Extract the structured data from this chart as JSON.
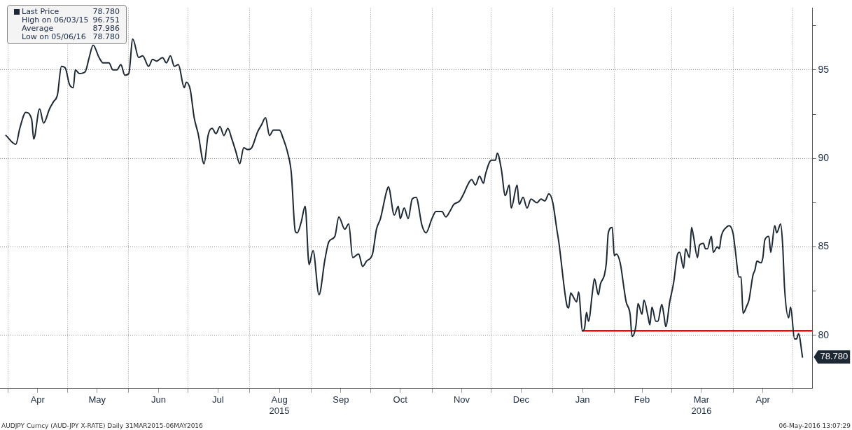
{
  "chart_data": {
    "type": "line",
    "legend": "top left",
    "grid": true,
    "marker": "none",
    "line_style": "solid",
    "xlim": [
      "2015-03-28",
      "2016-05-11"
    ],
    "xticks": [
      {
        "value": "2015-04-01",
        "label": null
      },
      {
        "value": "2015-04-16",
        "label": "Apr"
      },
      {
        "value": "2015-05-01",
        "label": null
      },
      {
        "value": "2015-05-16",
        "label": "May"
      },
      {
        "value": "2015-06-01",
        "label": null
      },
      {
        "value": "2015-06-16",
        "label": "Jun"
      },
      {
        "value": "2015-07-01",
        "label": null
      },
      {
        "value": "2015-07-16",
        "label": "Jul"
      },
      {
        "value": "2015-08-01",
        "label": null
      },
      {
        "value": "2015-08-16",
        "label": "Aug\n2015"
      },
      {
        "value": "2015-09-01",
        "label": null
      },
      {
        "value": "2015-09-16",
        "label": "Sep"
      },
      {
        "value": "2015-10-01",
        "label": null
      },
      {
        "value": "2015-10-16",
        "label": "Oct"
      },
      {
        "value": "2015-11-01",
        "label": null
      },
      {
        "value": "2015-11-16",
        "label": "Nov"
      },
      {
        "value": "2015-12-01",
        "label": null
      },
      {
        "value": "2015-12-16",
        "label": "Dec"
      },
      {
        "value": "2016-01-01",
        "label": null
      },
      {
        "value": "2016-01-16",
        "label": "Jan"
      },
      {
        "value": "2016-02-01",
        "label": null
      },
      {
        "value": "2016-02-15",
        "label": "Feb"
      },
      {
        "value": "2016-03-01",
        "label": null
      },
      {
        "value": "2016-03-16",
        "label": "Mar\n2016"
      },
      {
        "value": "2016-04-01",
        "label": null
      },
      {
        "value": "2016-04-16",
        "label": "Apr"
      },
      {
        "value": "2016-05-01",
        "label": null
      }
    ],
    "ylim": [
      77,
      98.5
    ],
    "yticks": [
      80,
      {
        "value": 82.5,
        "label": null
      },
      85,
      {
        "value": 87.5,
        "label": null
      },
      90,
      {
        "value": 92.5,
        "label": null
      },
      95,
      {
        "value": 97.5,
        "label": null
      }
    ],
    "series": [
      {
        "name": "Last Price",
        "color": "#1c2833",
        "x": [
          "2015-03-31",
          "2015-04-05",
          "2015-04-07",
          "2015-04-10",
          "2015-04-13",
          "2015-04-14",
          "2015-04-17",
          "2015-04-19",
          "2015-04-22",
          "2015-04-24",
          "2015-04-26",
          "2015-04-28",
          "2015-04-30",
          "2015-05-02",
          "2015-05-04",
          "2015-05-05",
          "2015-05-07",
          "2015-05-10",
          "2015-05-12",
          "2015-05-14",
          "2015-05-17",
          "2015-05-19",
          "2015-05-22",
          "2015-05-24",
          "2015-05-26",
          "2015-05-28",
          "2015-05-30",
          "2015-06-01",
          "2015-06-03",
          "2015-06-06",
          "2015-06-08",
          "2015-06-11",
          "2015-06-13",
          "2015-06-15",
          "2015-06-18",
          "2015-06-20",
          "2015-06-22",
          "2015-06-24",
          "2015-06-26",
          "2015-06-29",
          "2015-06-30",
          "2015-07-02",
          "2015-07-04",
          "2015-07-06",
          "2015-07-09",
          "2015-07-11",
          "2015-07-13",
          "2015-07-15",
          "2015-07-17",
          "2015-07-19",
          "2015-07-21",
          "2015-07-23",
          "2015-07-25",
          "2015-07-27",
          "2015-07-29",
          "2015-07-31",
          "2015-08-02",
          "2015-08-05",
          "2015-08-07",
          "2015-08-09",
          "2015-08-11",
          "2015-08-13",
          "2015-08-16",
          "2015-08-18",
          "2015-08-20",
          "2015-08-22",
          "2015-08-24",
          "2015-08-25",
          "2015-08-27",
          "2015-08-29",
          "2015-08-31",
          "2015-09-02",
          "2015-09-05",
          "2015-09-08",
          "2015-09-10",
          "2015-09-13",
          "2015-09-15",
          "2015-09-18",
          "2015-09-20",
          "2015-09-22",
          "2015-09-25",
          "2015-09-27",
          "2015-09-29",
          "2015-10-02",
          "2015-10-04",
          "2015-10-06",
          "2015-10-09",
          "2015-10-10",
          "2015-10-13",
          "2015-10-15",
          "2015-10-16",
          "2015-10-18",
          "2015-10-20",
          "2015-10-22",
          "2015-10-24",
          "2015-10-27",
          "2015-10-29",
          "2015-11-01",
          "2015-11-03",
          "2015-11-06",
          "2015-11-08",
          "2015-11-10",
          "2015-11-12",
          "2015-11-15",
          "2015-11-17",
          "2015-11-19",
          "2015-11-21",
          "2015-11-23",
          "2015-11-25",
          "2015-11-27",
          "2015-11-28",
          "2015-12-01",
          "2015-12-03",
          "2015-12-04",
          "2015-12-06",
          "2015-12-08",
          "2015-12-10",
          "2015-12-11",
          "2015-12-14",
          "2015-12-15",
          "2015-12-17",
          "2015-12-19",
          "2015-12-21",
          "2015-12-24",
          "2015-12-26",
          "2015-12-28",
          "2015-12-30",
          "2016-01-01",
          "2016-01-03",
          "2016-01-04",
          "2016-01-08",
          "2016-01-09",
          "2016-01-10",
          "2016-01-11",
          "2016-01-13",
          "2016-01-14",
          "2016-01-16",
          "2016-01-17",
          "2016-01-18",
          "2016-01-19",
          "2016-01-21",
          "2016-01-22",
          "2016-01-24",
          "2016-01-25",
          "2016-01-27",
          "2016-01-28",
          "2016-01-29",
          "2016-01-31",
          "2016-02-01",
          "2016-02-02",
          "2016-02-04",
          "2016-02-06",
          "2016-02-07",
          "2016-02-09",
          "2016-02-10",
          "2016-02-12",
          "2016-02-13",
          "2016-02-15",
          "2016-02-16",
          "2016-02-18",
          "2016-02-19",
          "2016-02-20",
          "2016-02-22",
          "2016-02-23",
          "2016-02-25",
          "2016-02-26",
          "2016-02-27",
          "2016-02-29",
          "2016-03-02",
          "2016-03-04",
          "2016-03-05",
          "2016-03-07",
          "2016-03-08",
          "2016-03-10",
          "2016-03-11",
          "2016-03-12",
          "2016-03-14",
          "2016-03-15",
          "2016-03-17",
          "2016-03-18",
          "2016-03-19",
          "2016-03-21",
          "2016-03-22",
          "2016-03-24",
          "2016-03-25",
          "2016-03-26",
          "2016-03-29",
          "2016-03-30",
          "2016-04-01",
          "2016-04-02",
          "2016-04-04",
          "2016-04-05",
          "2016-04-06",
          "2016-04-08",
          "2016-04-09",
          "2016-04-11",
          "2016-04-12",
          "2016-04-13",
          "2016-04-15",
          "2016-04-16",
          "2016-04-17",
          "2016-04-19",
          "2016-04-20",
          "2016-04-22",
          "2016-04-23",
          "2016-04-25",
          "2016-04-26",
          "2016-04-27",
          "2016-04-29",
          "2016-04-30",
          "2016-05-02",
          "2016-05-03",
          "2016-05-04",
          "2016-05-06"
        ],
        "values": [
          91.3,
          90.8,
          91.7,
          92.6,
          92.2,
          91.1,
          92.8,
          92.0,
          92.8,
          93.2,
          93.6,
          95.2,
          95.1,
          94.2,
          94.0,
          95.0,
          94.8,
          94.9,
          95.7,
          96.4,
          95.7,
          95.4,
          95.4,
          95.0,
          95.0,
          95.3,
          94.7,
          94.8,
          96.75,
          95.7,
          95.8,
          95.2,
          95.6,
          95.5,
          95.7,
          95.4,
          95.8,
          95.2,
          95.3,
          94.0,
          94.3,
          93.9,
          92.3,
          91.4,
          89.7,
          91.3,
          91.7,
          91.4,
          91.8,
          91.3,
          91.7,
          91.1,
          90.4,
          89.7,
          90.6,
          90.5,
          90.6,
          91.5,
          91.9,
          92.3,
          91.3,
          91.6,
          91.6,
          91.1,
          90.4,
          89.2,
          85.9,
          85.8,
          86.4,
          87.3,
          84.0,
          84.8,
          82.3,
          84.3,
          85.3,
          85.6,
          86.7,
          86.0,
          86.3,
          84.4,
          84.6,
          83.9,
          84.2,
          84.6,
          86.0,
          86.6,
          88.1,
          88.4,
          86.8,
          87.3,
          86.6,
          87.2,
          86.6,
          87.7,
          87.8,
          86.2,
          85.8,
          86.6,
          87.0,
          87.0,
          86.7,
          87.0,
          87.4,
          87.6,
          88.0,
          88.5,
          88.8,
          88.5,
          89.0,
          88.6,
          89.1,
          89.9,
          89.9,
          90.3,
          89.4,
          87.9,
          88.5,
          87.2,
          88.5,
          87.4,
          87.8,
          87.2,
          87.7,
          87.5,
          87.7,
          87.6,
          88.0,
          87.5,
          86.0,
          85.3,
          81.75,
          81.55,
          82.4,
          82.25,
          81.9,
          82.45,
          80.25,
          80.4,
          81.3,
          80.8,
          82.45,
          83.2,
          82.3,
          82.9,
          83.4,
          84.1,
          85.8,
          86.1,
          84.5,
          84.6,
          84.1,
          82.6,
          81.9,
          81.2,
          79.95,
          80.6,
          81.8,
          81.2,
          82.0,
          81.1,
          80.6,
          81.6,
          80.8,
          80.8,
          81.75,
          81.2,
          80.5,
          81.9,
          83.0,
          84.6,
          84.7,
          83.8,
          84.9,
          84.4,
          86.1,
          85.6,
          84.4,
          85.1,
          85.2,
          84.9,
          84.9,
          85.6,
          84.7,
          85.0,
          84.9,
          85.6,
          86.15,
          86.2,
          85.75,
          84.9,
          83.3,
          83.3,
          81.25,
          81.7,
          82.0,
          83.4,
          83.7,
          84.2,
          84.1,
          84.4,
          85.4,
          85.6,
          84.7,
          86.2,
          85.8,
          86.3,
          85.1,
          82.6,
          81.0,
          81.6,
          79.8,
          79.8,
          80.1,
          78.78
        ]
      },
      {
        "type": "line",
        "color": "#ff0000",
        "x": [
          "2016-01-16",
          "2016-05-11"
        ],
        "values": [
          80.27,
          80.27
        ]
      }
    ],
    "annotations": [
      {
        "text": "78.780",
        "x": "2016-05-06",
        "y": 78.78
      },
      "High on 06/03/15 96.751",
      "Average 87.986",
      "Low on 05/06/16 78.780",
      "AUDJPY Curncy (AUD-JPY X-RATE) Daily 31MAR2015-06MAY2016",
      "06-May-2016 13:07:29"
    ]
  }
}
